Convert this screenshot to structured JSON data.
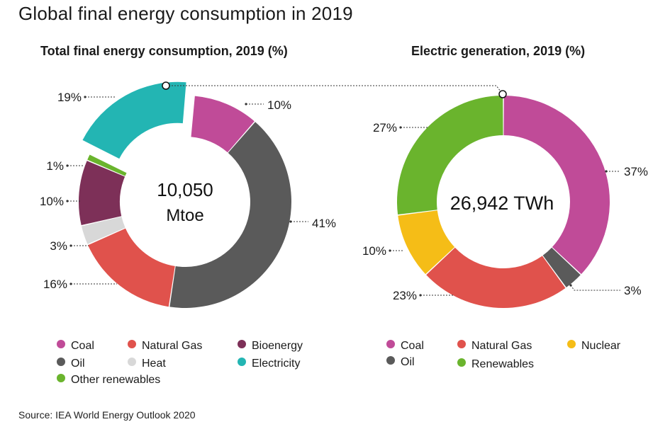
{
  "title": "Global final energy consumption in 2019",
  "source": "Source: IEA World Energy Outlook 2020",
  "colors": {
    "Coal": "#c04b98",
    "Oil": "#5a5a5a",
    "Natural Gas": "#e0524c",
    "Heat": "#d8d8d8",
    "Bioenergy": "#7d3058",
    "Other renewables": "#6ab42d",
    "Electricity": "#23b5b3",
    "Nuclear": "#f5bd17",
    "Renewables": "#6ab42d"
  },
  "chart_data": [
    {
      "type": "pie",
      "subtitle": "Total final energy consumption, 2019 (%)",
      "center_label": [
        "10,050",
        "Mtoe"
      ],
      "slices": [
        {
          "name": "Coal",
          "value": 10,
          "label": "10%"
        },
        {
          "name": "Oil",
          "value": 41,
          "label": "41%"
        },
        {
          "name": "Natural Gas",
          "value": 16,
          "label": "16%"
        },
        {
          "name": "Heat",
          "value": 3,
          "label": "3%"
        },
        {
          "name": "Bioenergy",
          "value": 10,
          "label": "10%"
        },
        {
          "name": "Other renewables",
          "value": 1,
          "label": "1%"
        },
        {
          "name": "Electricity",
          "value": 19,
          "label": "19%",
          "exploded": true
        }
      ],
      "legend": [
        "Coal",
        "Natural Gas",
        "Bioenergy",
        "Oil",
        "Heat",
        "Electricity",
        "Other renewables"
      ]
    },
    {
      "type": "pie",
      "subtitle": "Electric generation, 2019 (%)",
      "center_label": [
        "26,942 TWh"
      ],
      "slices": [
        {
          "name": "Coal",
          "value": 37,
          "label": "37%"
        },
        {
          "name": "Oil",
          "value": 3,
          "label": "3%"
        },
        {
          "name": "Natural Gas",
          "value": 23,
          "label": "23%"
        },
        {
          "name": "Nuclear",
          "value": 10,
          "label": "10%"
        },
        {
          "name": "Renewables",
          "value": 27,
          "label": "27%"
        }
      ],
      "legend": [
        "Coal",
        "Natural Gas",
        "Nuclear",
        "Oil",
        "Renewables"
      ]
    }
  ]
}
